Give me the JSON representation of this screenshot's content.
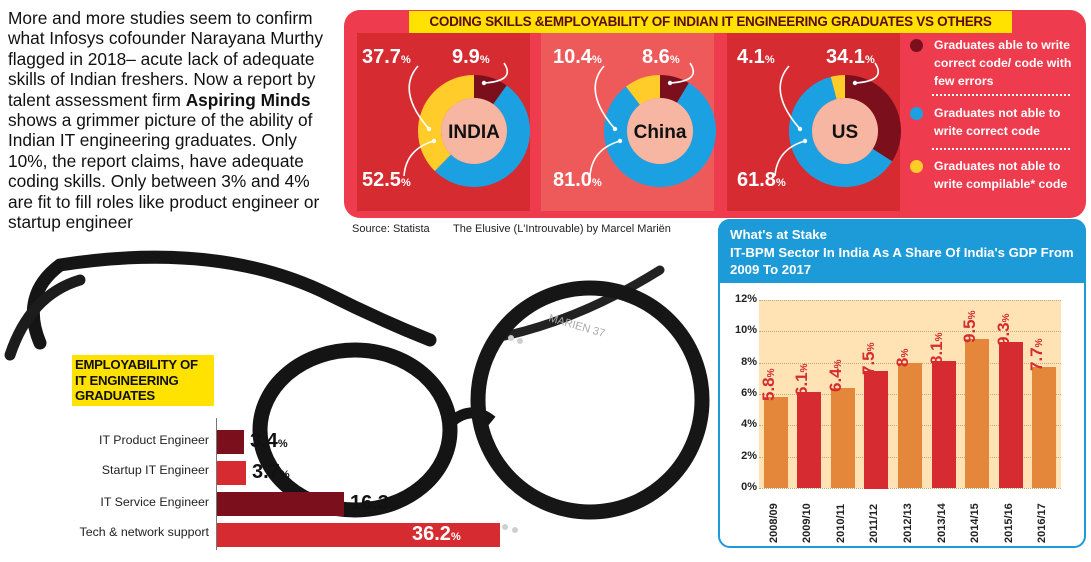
{
  "intro": {
    "text_before": "More and more studies seem to confirm what Infosys cofounder Narayana Murthy flagged in 2018– acute lack of adequate skills of Indian freshers. Now a report by talent assessment firm ",
    "bold": "Aspiring Minds",
    "text_after": " shows a grimmer picture of the ability of Indian IT engineering graduates. Only 10%, the report claims, have adequate coding skills. Only between 3% and 4% are fit to fill roles like product engineer or startup engineer"
  },
  "source": "Source: Statista",
  "caption": "The Elusive (L'Introuvable) by Marcel Mariën",
  "glasses_engraving": "MARIEN 37",
  "colors": {
    "dark_red": "#7c0f1c",
    "blue": "#1ba1e2",
    "yellow": "#ffcc29",
    "panel_red": "#ef3b4e",
    "bar_red": "#d52b31",
    "bar_orange": "#e5873a",
    "gdp_blue": "#1d9ad8"
  },
  "chart_data": [
    {
      "type": "pie",
      "title": "CODING SKILLS &EMPLOYABILITY OF  INDIAN IT ENGINEERING GRADUATES VS OTHERS",
      "legend": [
        "Graduates able to write correct code/ code with few errors",
        "Graduates not able to write correct code",
        "Graduates not able to write compilable* code"
      ],
      "pies": [
        {
          "name": "INDIA",
          "values": [
            9.9,
            52.5,
            37.7
          ],
          "labels": [
            "9.9",
            "52.5",
            "37.7"
          ]
        },
        {
          "name": "China",
          "values": [
            8.6,
            81.0,
            10.4
          ],
          "labels": [
            "8.6",
            "81.0",
            "10.4"
          ]
        },
        {
          "name": "US",
          "values": [
            34.1,
            61.8,
            4.1
          ],
          "labels": [
            "34.1",
            "61.8",
            "4.1"
          ]
        }
      ],
      "unit": "%"
    },
    {
      "type": "bar",
      "orientation": "horizontal",
      "title": "EMPLOYABILITY OF IT ENGINEERING GRADUATES",
      "categories": [
        "IT Product Engineer",
        "Startup IT Engineer",
        "IT Service Engineer",
        "Tech & network support"
      ],
      "values": [
        3.4,
        3.7,
        16.3,
        36.2
      ],
      "unit": "%"
    },
    {
      "type": "bar",
      "title": "What's at Stake",
      "subtitle": "IT-BPM Sector In India As A Share Of India's GDP From 2009 To 2017",
      "categories": [
        "2008/09",
        "2009/10",
        "2010/11",
        "2011/12",
        "2012/13",
        "2013/14",
        "2014/15",
        "2015/16",
        "2016/17"
      ],
      "values": [
        5.8,
        6.1,
        6.4,
        7.5,
        8,
        8.1,
        9.5,
        9.3,
        7.7
      ],
      "value_labels": [
        "5.8",
        "6.1",
        "6.4",
        "7.5",
        "8",
        "8.1",
        "9.5",
        "9.3",
        "7.7"
      ],
      "unit": "%",
      "ylim": [
        0,
        12
      ],
      "yticks": [
        "0%",
        "2%",
        "4%",
        "6%",
        "8%",
        "10%",
        "12%"
      ]
    }
  ]
}
